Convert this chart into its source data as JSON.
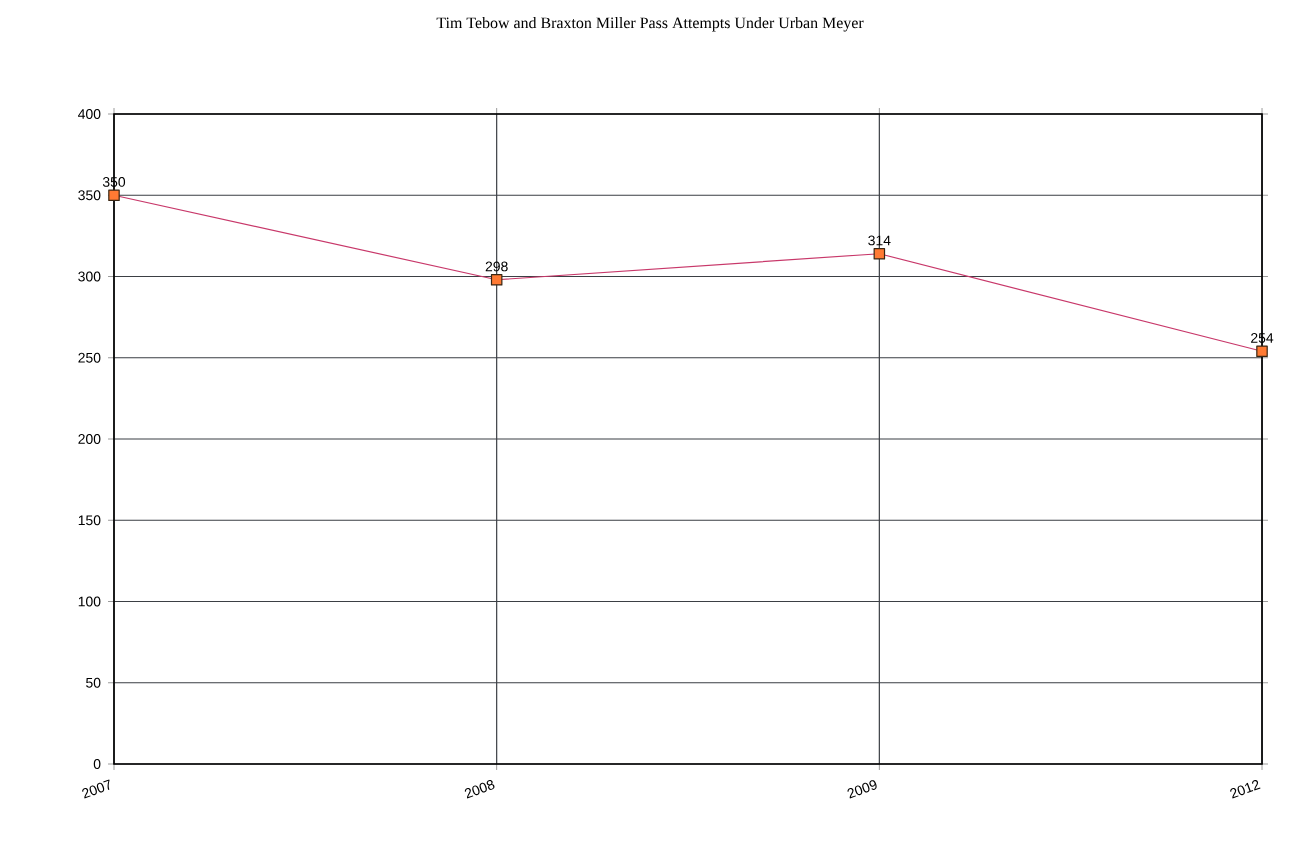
{
  "chart_data": {
    "type": "line",
    "title": "Tim Tebow and Braxton Miller Pass Attempts Under Urban Meyer",
    "categories": [
      "2007",
      "2008",
      "2009",
      "2012"
    ],
    "values": [
      350,
      298,
      314,
      254
    ],
    "color": "#c8386a",
    "ylim": [
      0,
      400
    ],
    "yticks": [
      0,
      50,
      100,
      150,
      200,
      250,
      300,
      350,
      400
    ],
    "grid": true,
    "marker": "square",
    "data_labels": true
  }
}
